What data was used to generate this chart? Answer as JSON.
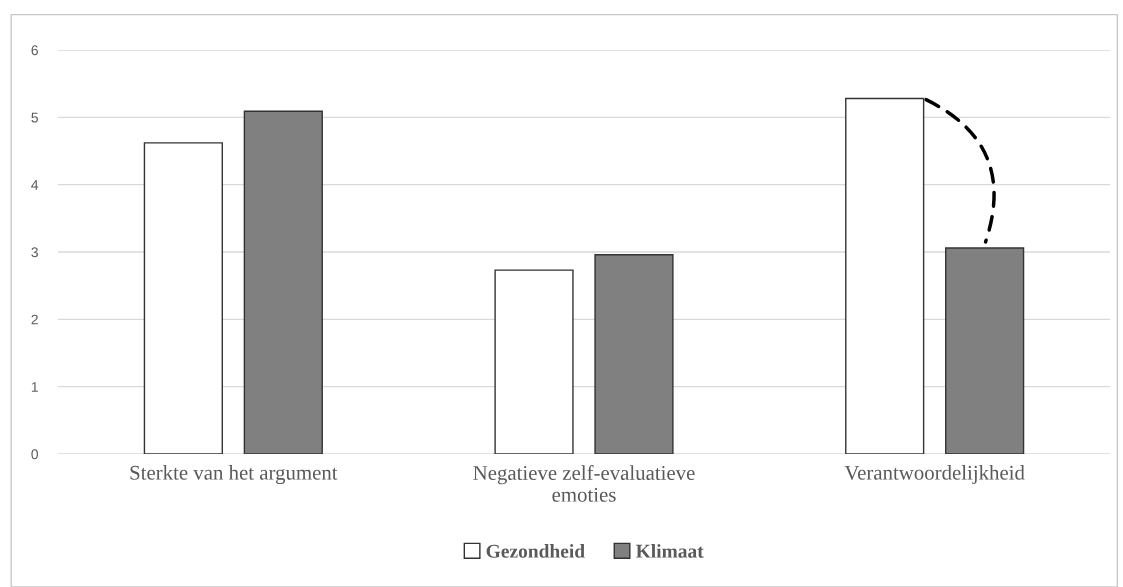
{
  "chart_data": {
    "type": "bar",
    "categories": [
      "Sterkte van het argument",
      "Negatieve zelf-evaluatieve\nemoties",
      "Verantwoordelijkheid"
    ],
    "series": [
      {
        "name": "Gezondheid",
        "color": "#ffffff",
        "values": [
          4.62,
          2.73,
          5.28
        ]
      },
      {
        "name": "Klimaat",
        "color": "#808080",
        "values": [
          5.09,
          2.96,
          3.06
        ]
      }
    ],
    "ylim": [
      0,
      6
    ],
    "yticks": [
      0,
      1,
      2,
      3,
      4,
      5,
      6
    ],
    "grid": "y",
    "legend": "bottom"
  }
}
